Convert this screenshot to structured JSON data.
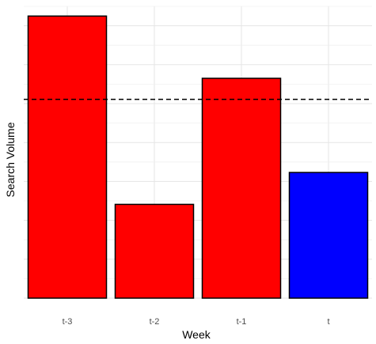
{
  "chart_data": {
    "type": "bar",
    "title": "",
    "xlabel": "Week",
    "ylabel": "Search Volume",
    "categories": [
      "t-3",
      "t-2",
      "t-1",
      "t"
    ],
    "values": [
      72.5,
      24.1,
      56.5,
      32.3
    ],
    "bar_colors": [
      "#ff0000",
      "#ff0000",
      "#ff0000",
      "#0000ff"
    ],
    "bar_outline_color": "#000000",
    "reference_line": {
      "value": 51.1,
      "style": "dashed",
      "color": "#000000"
    },
    "ylim": [
      0,
      75
    ],
    "y_tick_labels_visible": false,
    "grid": true,
    "legend": "none"
  }
}
